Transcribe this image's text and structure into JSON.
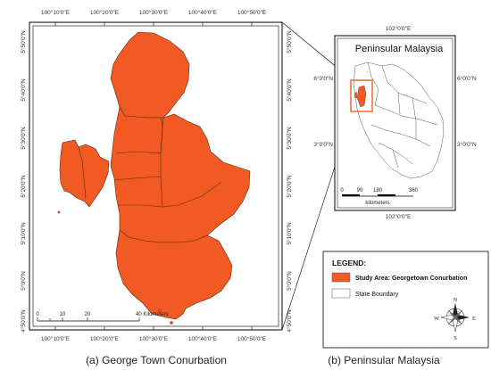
{
  "main_map": {
    "top_ticks": [
      "100°10'0\"E",
      "100°20'0\"E",
      "100°30'0\"E",
      "100°40'0\"E",
      "100°50'0\"E"
    ],
    "bottom_ticks": [
      "100°10'0\"E",
      "100°20'0\"E",
      "100°30'0\"E",
      "100°40'0\"E",
      "100°50'0\"E"
    ],
    "left_ticks": [
      "5°50'0\"N",
      "5°40'0\"N",
      "5°30'0\"N",
      "5°20'0\"N",
      "5°10'0\"N",
      "5°0'0\"N",
      "4°50'0\"N"
    ],
    "right_ticks": [
      "5°50'0\"N",
      "5°40'0\"N",
      "5°30'0\"N",
      "5°20'0\"N",
      "5°10'0\"N",
      "5°0'0\"N",
      "4°50'0\"N"
    ],
    "scale_labels": [
      "0",
      "10",
      "20",
      "40 Kilometers"
    ],
    "fill_color": "#f15a22"
  },
  "inset_map": {
    "title": "Peninsular Malaysia",
    "top_tick": "102°0'0\"E",
    "bottom_tick": "102°0'0\"E",
    "left_ticks": [
      "6°0'0\"N",
      "3°0'0\"N"
    ],
    "right_ticks": [
      "6°0'0\"N",
      "3°0'0\"N"
    ],
    "scale_labels": [
      "0",
      "90",
      "180",
      "360"
    ],
    "scale_unit": "kilometers",
    "highlight_color": "#f15a22"
  },
  "legend": {
    "title": "LEGEND:",
    "items": [
      {
        "label": "Study Area: Georgetown Conurbation",
        "color": "#f15a22"
      },
      {
        "label": "State Boundary",
        "color": "#ffffff"
      }
    ]
  },
  "compass": {
    "n": "N",
    "s": "S",
    "e": "E",
    "w": "W"
  },
  "captions": {
    "left": "(a) George Town Conurbation",
    "right": "(b) Peninsular Malaysia"
  }
}
